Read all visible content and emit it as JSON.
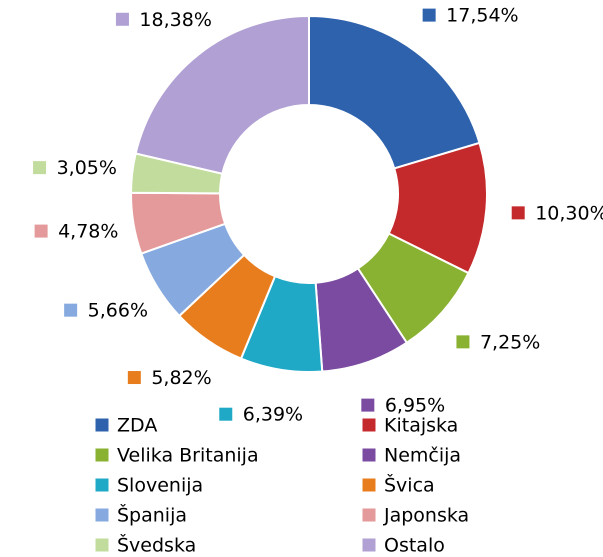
{
  "chart_data": {
    "type": "donut",
    "categories": [
      "ZDA",
      "Kitajska",
      "Velika Britanija",
      "Nemčija",
      "Slovenija",
      "Švica",
      "Španija",
      "Japonska",
      "Švedska",
      "Ostalo"
    ],
    "values": [
      17.54,
      10.3,
      7.25,
      6.95,
      6.39,
      5.82,
      5.66,
      4.78,
      3.05,
      18.38
    ],
    "value_labels": [
      "17,54%",
      "10,30%",
      "7,25%",
      "6,95%",
      "6,39%",
      "5,82%",
      "5,66%",
      "4,78%",
      "3,05%",
      "18,38%"
    ],
    "colors": [
      "#2e62ad",
      "#c42a2c",
      "#8ab232",
      "#7a4ba0",
      "#1fa9c6",
      "#e87d1e",
      "#86a9df",
      "#e49a9a",
      "#c2dc9e",
      "#b1a0d3"
    ],
    "legend": "bottom"
  }
}
